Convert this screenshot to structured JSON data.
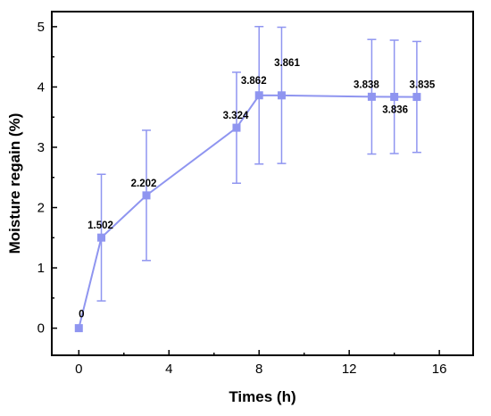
{
  "chart_data": {
    "type": "line",
    "xlabel": "Times (h)",
    "ylabel": "Moisture regain (%)",
    "xlim": [
      -1.2,
      17.5
    ],
    "ylim": [
      -0.45,
      5.25
    ],
    "xticks": [
      0,
      4,
      8,
      12,
      16
    ],
    "yticks": [
      0,
      1,
      2,
      3,
      4,
      5
    ],
    "grid": false,
    "legend": "none",
    "series_color": "#8f95f0",
    "series": [
      {
        "x": [
          0,
          1,
          3,
          7,
          8,
          9,
          13,
          14,
          15
        ],
        "values": [
          0,
          1.502,
          2.202,
          3.324,
          3.862,
          3.861,
          3.838,
          3.836,
          3.835
        ],
        "error": [
          0,
          1.05,
          1.08,
          0.92,
          1.14,
          1.13,
          0.95,
          0.94,
          0.92
        ],
        "labels": [
          "0",
          "1.502",
          "2.202",
          "3.324",
          "3.862",
          "3.861",
          "3.838",
          "3.836",
          "3.835"
        ]
      }
    ]
  }
}
